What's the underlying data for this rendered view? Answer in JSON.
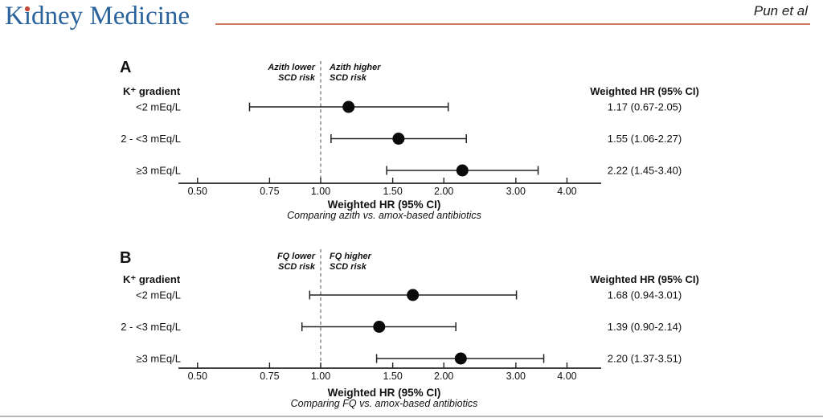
{
  "page": {
    "journal": "Kidney Medicine",
    "author": "Pun et al"
  },
  "chart_data": [
    {
      "type": "forest",
      "panel_label": "A",
      "group_header": "K⁺ gradient",
      "effect_column_header": "Weighted HR (95% CI)",
      "annotation_left": [
        "Azith lower",
        "SCD risk"
      ],
      "annotation_right": [
        "Azith higher",
        "SCD risk"
      ],
      "rows": [
        {
          "label": "<2 mEq/L",
          "hr": 1.17,
          "ci_low": 0.67,
          "ci_high": 2.05,
          "display": "1.17 (0.67-2.05)"
        },
        {
          "label": "2 - <3 mEq/L",
          "hr": 1.55,
          "ci_low": 1.06,
          "ci_high": 2.27,
          "display": "1.55 (1.06-2.27)"
        },
        {
          "label": "≥3 mEq/L",
          "hr": 2.22,
          "ci_low": 1.45,
          "ci_high": 3.4,
          "display": "2.22 (1.45-3.40)"
        }
      ],
      "xlabel": "Weighted HR (95% CI)",
      "x_sublabel": "Comparing azith vs. amox-based antibiotics",
      "x_scale": "log",
      "x_ticks": [
        "0.50",
        "0.75",
        "1.00",
        "1.50",
        "2.00",
        "3.00",
        "4.00"
      ],
      "reference_value": 1.0,
      "xlim": [
        0.45,
        4.9
      ]
    },
    {
      "type": "forest",
      "panel_label": "B",
      "group_header": "K⁺ gradient",
      "effect_column_header": "Weighted HR (95% CI)",
      "annotation_left": [
        "FQ lower",
        "SCD risk"
      ],
      "annotation_right": [
        "FQ higher",
        "SCD risk"
      ],
      "rows": [
        {
          "label": "<2 mEq/L",
          "hr": 1.68,
          "ci_low": 0.94,
          "ci_high": 3.01,
          "display": "1.68 (0.94-3.01)"
        },
        {
          "label": "2 - <3 mEq/L",
          "hr": 1.39,
          "ci_low": 0.9,
          "ci_high": 2.14,
          "display": "1.39 (0.90-2.14)"
        },
        {
          "label": "≥3 mEq/L",
          "hr": 2.2,
          "ci_low": 1.37,
          "ci_high": 3.51,
          "display": "2.20 (1.37-3.51)"
        }
      ],
      "xlabel": "Weighted HR (95% CI)",
      "x_sublabel": "Comparing FQ vs. amox-based antibiotics",
      "x_scale": "log",
      "x_ticks": [
        "0.50",
        "0.75",
        "1.00",
        "1.50",
        "2.00",
        "3.00",
        "4.00"
      ],
      "reference_value": 1.0,
      "xlim": [
        0.45,
        4.9
      ]
    }
  ]
}
